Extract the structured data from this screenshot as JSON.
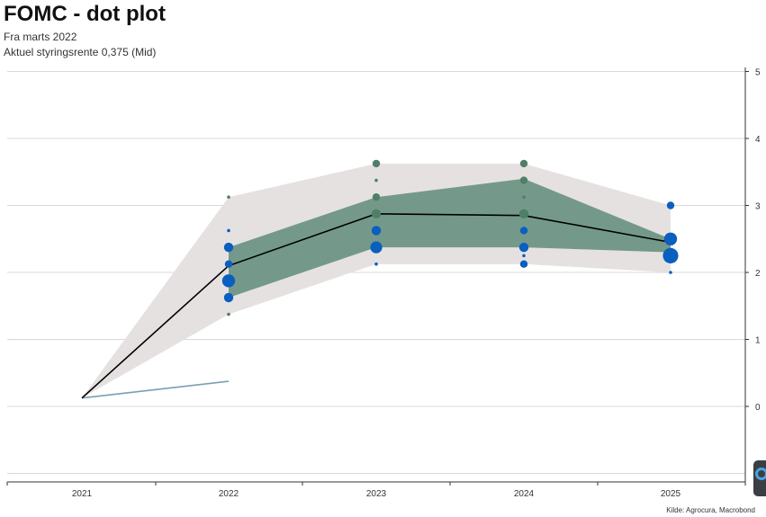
{
  "header": {
    "title": "FOMC - dot plot",
    "subtitle_1": "Fra marts 2022",
    "subtitle_2": "Aktuel styringsrente 0,375 (Mid)"
  },
  "source": "Kilde: Agrocura, Macrobond",
  "colors": {
    "outer_band": "#e6e1e1",
    "inner_band": "#74998a",
    "median_line": "#000000",
    "market_line": "#7a9fb3",
    "dots_blue": "#0a5fbf",
    "dots_green": "#4f7f66",
    "grid": "#d9d9d9"
  },
  "chart_data": {
    "type": "line",
    "title": "FOMC - dot plot",
    "x": [
      "2021",
      "2022",
      "2023",
      "2024",
      "2025"
    ],
    "ylim": [
      -1,
      5
    ],
    "yticks": [
      0,
      1,
      2,
      3,
      4,
      5
    ],
    "y_axis_position": "right",
    "grid": true,
    "series": [
      {
        "kind": "band",
        "role": "outer",
        "x": [
          "2021",
          "2022",
          "2023",
          "2024",
          "2025"
        ],
        "low": [
          0.125,
          1.375,
          2.125,
          2.125,
          2.0
        ],
        "high": [
          0.125,
          3.125,
          3.625,
          3.625,
          3.0
        ]
      },
      {
        "kind": "band",
        "role": "inner",
        "x": [
          "2022",
          "2023",
          "2024",
          "2025"
        ],
        "low": [
          1.625,
          2.375,
          2.375,
          2.3
        ],
        "high": [
          2.375,
          3.125,
          3.4,
          2.5
        ]
      },
      {
        "kind": "line",
        "role": "median",
        "x": [
          "2021",
          "2022",
          "2023",
          "2024",
          "2025"
        ],
        "values": [
          0.125,
          2.1,
          2.875,
          2.85,
          2.45
        ]
      },
      {
        "kind": "line",
        "role": "market",
        "x": [
          "2021",
          "2022"
        ],
        "values": [
          0.125,
          0.375
        ]
      }
    ],
    "dots": [
      {
        "x": "2022",
        "y": 3.125,
        "count": 1,
        "color": "green"
      },
      {
        "x": "2022",
        "y": 2.625,
        "count": 1,
        "color": "blue"
      },
      {
        "x": "2022",
        "y": 2.375,
        "count": 3,
        "color": "blue"
      },
      {
        "x": "2022",
        "y": 2.125,
        "count": 2,
        "color": "blue"
      },
      {
        "x": "2022",
        "y": 1.875,
        "count": 6,
        "color": "blue"
      },
      {
        "x": "2022",
        "y": 1.625,
        "count": 3,
        "color": "blue"
      },
      {
        "x": "2022",
        "y": 1.375,
        "count": 1,
        "color": "green"
      },
      {
        "x": "2023",
        "y": 3.625,
        "count": 2,
        "color": "green"
      },
      {
        "x": "2023",
        "y": 3.375,
        "count": 1,
        "color": "green"
      },
      {
        "x": "2023",
        "y": 3.125,
        "count": 2,
        "color": "green"
      },
      {
        "x": "2023",
        "y": 2.875,
        "count": 3,
        "color": "green"
      },
      {
        "x": "2023",
        "y": 2.625,
        "count": 3,
        "color": "blue"
      },
      {
        "x": "2023",
        "y": 2.375,
        "count": 5,
        "color": "blue"
      },
      {
        "x": "2023",
        "y": 2.125,
        "count": 1,
        "color": "blue"
      },
      {
        "x": "2024",
        "y": 3.625,
        "count": 2,
        "color": "green"
      },
      {
        "x": "2024",
        "y": 3.375,
        "count": 2,
        "color": "green"
      },
      {
        "x": "2024",
        "y": 3.125,
        "count": 1,
        "color": "green"
      },
      {
        "x": "2024",
        "y": 2.875,
        "count": 3,
        "color": "green"
      },
      {
        "x": "2024",
        "y": 2.625,
        "count": 2,
        "color": "blue"
      },
      {
        "x": "2024",
        "y": 2.375,
        "count": 3,
        "color": "blue"
      },
      {
        "x": "2024",
        "y": 2.25,
        "count": 1,
        "color": "blue"
      },
      {
        "x": "2024",
        "y": 2.125,
        "count": 2,
        "color": "blue"
      },
      {
        "x": "2025",
        "y": 3.0,
        "count": 2,
        "color": "blue"
      },
      {
        "x": "2025",
        "y": 2.5,
        "count": 6,
        "color": "blue"
      },
      {
        "x": "2025",
        "y": 2.25,
        "count": 9,
        "color": "blue"
      },
      {
        "x": "2025",
        "y": 2.0,
        "count": 1,
        "color": "blue"
      }
    ]
  }
}
